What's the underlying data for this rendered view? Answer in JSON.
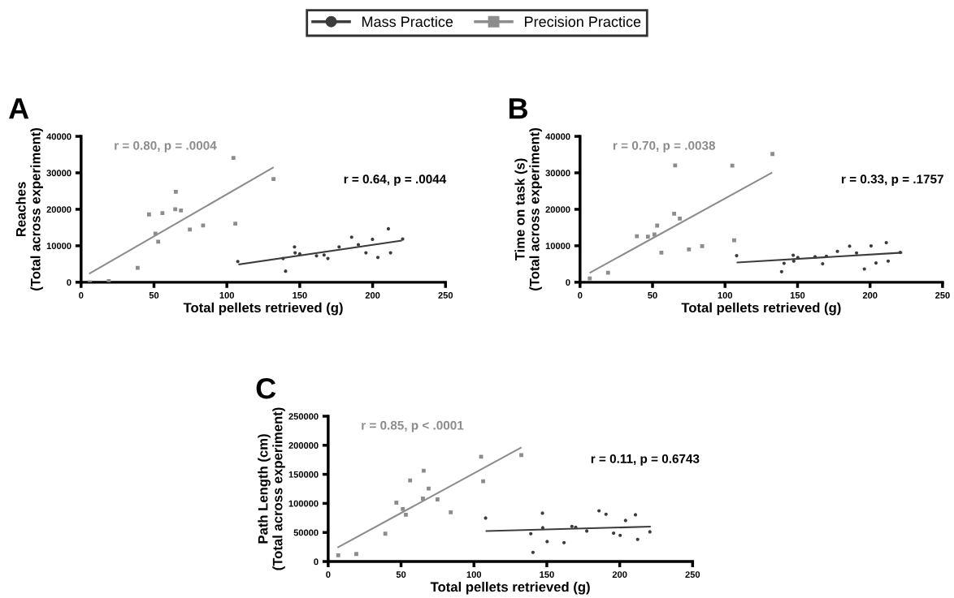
{
  "chart_data": [
    {
      "type": "scatter",
      "xlabel": "Total pellets retrieved (g)",
      "ylabel": "Reaches\n(Total across experiment)",
      "xlim": [
        0,
        250
      ],
      "xticks": [
        0,
        50,
        100,
        150,
        200,
        250
      ],
      "ylim": [
        0,
        40000
      ],
      "yticks": [
        0,
        10000,
        20000,
        30000,
        40000
      ],
      "grid": false,
      "legend": "top",
      "annotations": [
        "A",
        "r = 0.80, p = .0004",
        "r = 0.64, p = .0044"
      ],
      "series": [
        {
          "name": "Mass Practice",
          "color": "#3c3c3c",
          "marker": "circle",
          "x": [
            107.5,
            138.6,
            140.3,
            146.4,
            146.8,
            150,
            161.5,
            166.7,
            169.3,
            177,
            185.6,
            190.2,
            195.4,
            199.9,
            203.6,
            210.8,
            212.3,
            220.6
          ],
          "values": [
            5700,
            6520,
            3040,
            9700,
            8070,
            7780,
            7260,
            7480,
            6520,
            9700,
            12370,
            10300,
            8070,
            11780,
            6810,
            14670,
            8070,
            11850
          ]
        },
        {
          "name": "Precision Practice",
          "color": "#8c8c8c",
          "marker": "square",
          "x": [
            6,
            19,
            38.8,
            46.6,
            51,
            52.9,
            55.8,
            65,
            64.6,
            68.5,
            74.6,
            83.7,
            104.5,
            105.8,
            132
          ],
          "values": [
            0,
            300,
            3930,
            18600,
            13330,
            11100,
            18960,
            24800,
            20000,
            19700,
            14440,
            15550,
            34070,
            16070,
            28300
          ]
        },
        {
          "type": "line",
          "color": "#3c3c3c",
          "x": [
            108.5,
            219.5
          ],
          "values": [
            4890,
            11400
          ]
        },
        {
          "type": "line",
          "color": "#8c8c8c",
          "x": [
            6,
            131.6
          ],
          "values": [
            2440,
            31400
          ]
        }
      ]
    },
    {
      "type": "scatter",
      "xlabel": "Total pellets retrieved (g)",
      "ylabel": "Time on task (s)\n(Total across experiment)",
      "xlim": [
        0,
        250
      ],
      "xticks": [
        0,
        50,
        100,
        150,
        200,
        250
      ],
      "ylim": [
        0,
        40000
      ],
      "yticks": [
        0,
        10000,
        20000,
        30000,
        40000
      ],
      "grid": false,
      "annotations": [
        "B",
        "r = 0.70, p = .0038",
        "r = 0.33, p = .1757"
      ],
      "series": [
        {
          "color": "#3c3c3c",
          "marker": "circle",
          "x": [
            108,
            139,
            140.7,
            147,
            147.4,
            150.2,
            162.1,
            167.3,
            169.9,
            177.5,
            185.9,
            190.7,
            196.1,
            200.7,
            204.1,
            211.2,
            212.5,
            220.8
          ],
          "values": [
            7290,
            2900,
            5200,
            7430,
            5800,
            6770,
            6990,
            5060,
            7140,
            8480,
            9890,
            8030,
            3640,
            9960,
            5280,
            10860,
            5800,
            8180
          ]
        },
        {
          "color": "#8c8c8c",
          "marker": "square",
          "x": [
            6.7,
            19.3,
            39.2,
            46.8,
            51.3,
            53.2,
            56.1,
            64.9,
            65.6,
            68.8,
            75.1,
            84.2,
            105,
            106.3,
            132.7
          ],
          "values": [
            1040,
            2600,
            12640,
            12490,
            13090,
            15540,
            8100,
            18810,
            32040,
            17470,
            9000,
            9890,
            31970,
            11520,
            35170
          ]
        },
        {
          "type": "line",
          "color": "#3c3c3c",
          "x": [
            108.6,
            221.6
          ],
          "values": [
            5430,
            8100
          ]
        },
        {
          "type": "line",
          "color": "#8c8c8c",
          "x": [
            7.1,
            132
          ],
          "values": [
            2680,
            29960
          ]
        }
      ]
    },
    {
      "type": "scatter",
      "xlabel": "Total pellets retrieved (g)",
      "ylabel": "Path Length (cm)\n(Total across experiment)",
      "xlim": [
        0,
        250
      ],
      "xticks": [
        0,
        50,
        100,
        150,
        200,
        250
      ],
      "ylim": [
        0,
        250000
      ],
      "yticks": [
        0,
        50000,
        100000,
        150000,
        200000,
        250000
      ],
      "grid": false,
      "annotations": [
        "C",
        "r = 0.85, p < .0001",
        "r = 0.11, p = 0.6743"
      ],
      "series": [
        {
          "color": "#3c3c3c",
          "marker": "circle",
          "x": [
            108,
            139,
            140.5,
            147,
            147.2,
            150.2,
            161.8,
            167.2,
            169.8,
            177.4,
            185.8,
            190.6,
            195.8,
            200.3,
            204,
            210.8,
            212.3,
            220.7
          ],
          "values": [
            74810,
            47860,
            15800,
            83180,
            58090,
            34390,
            32530,
            60410,
            59010,
            52510,
            87360,
            81320,
            48790,
            45070,
            70630,
            80390,
            38100,
            51110
          ]
        },
        {
          "color": "#8c8c8c",
          "marker": "square",
          "x": [
            6.9,
            19.3,
            39.2,
            46.8,
            51.2,
            53.3,
            56.2,
            65,
            65.5,
            68.9,
            75,
            84.1,
            104.9,
            106.3,
            132.5
          ],
          "values": [
            10690,
            13010,
            47860,
            101300,
            90150,
            80390,
            139400,
            108270,
            156130,
            125460,
            106880,
            84570,
            180300,
            138010,
            183090
          ]
        },
        {
          "type": "line",
          "color": "#3c3c3c",
          "x": [
            108.6,
            220.7
          ],
          "values": [
            52510,
            59940
          ]
        },
        {
          "type": "line",
          "color": "#8c8c8c",
          "x": [
            6.9,
            132.1
          ],
          "values": [
            24630,
            195630
          ]
        }
      ]
    }
  ]
}
